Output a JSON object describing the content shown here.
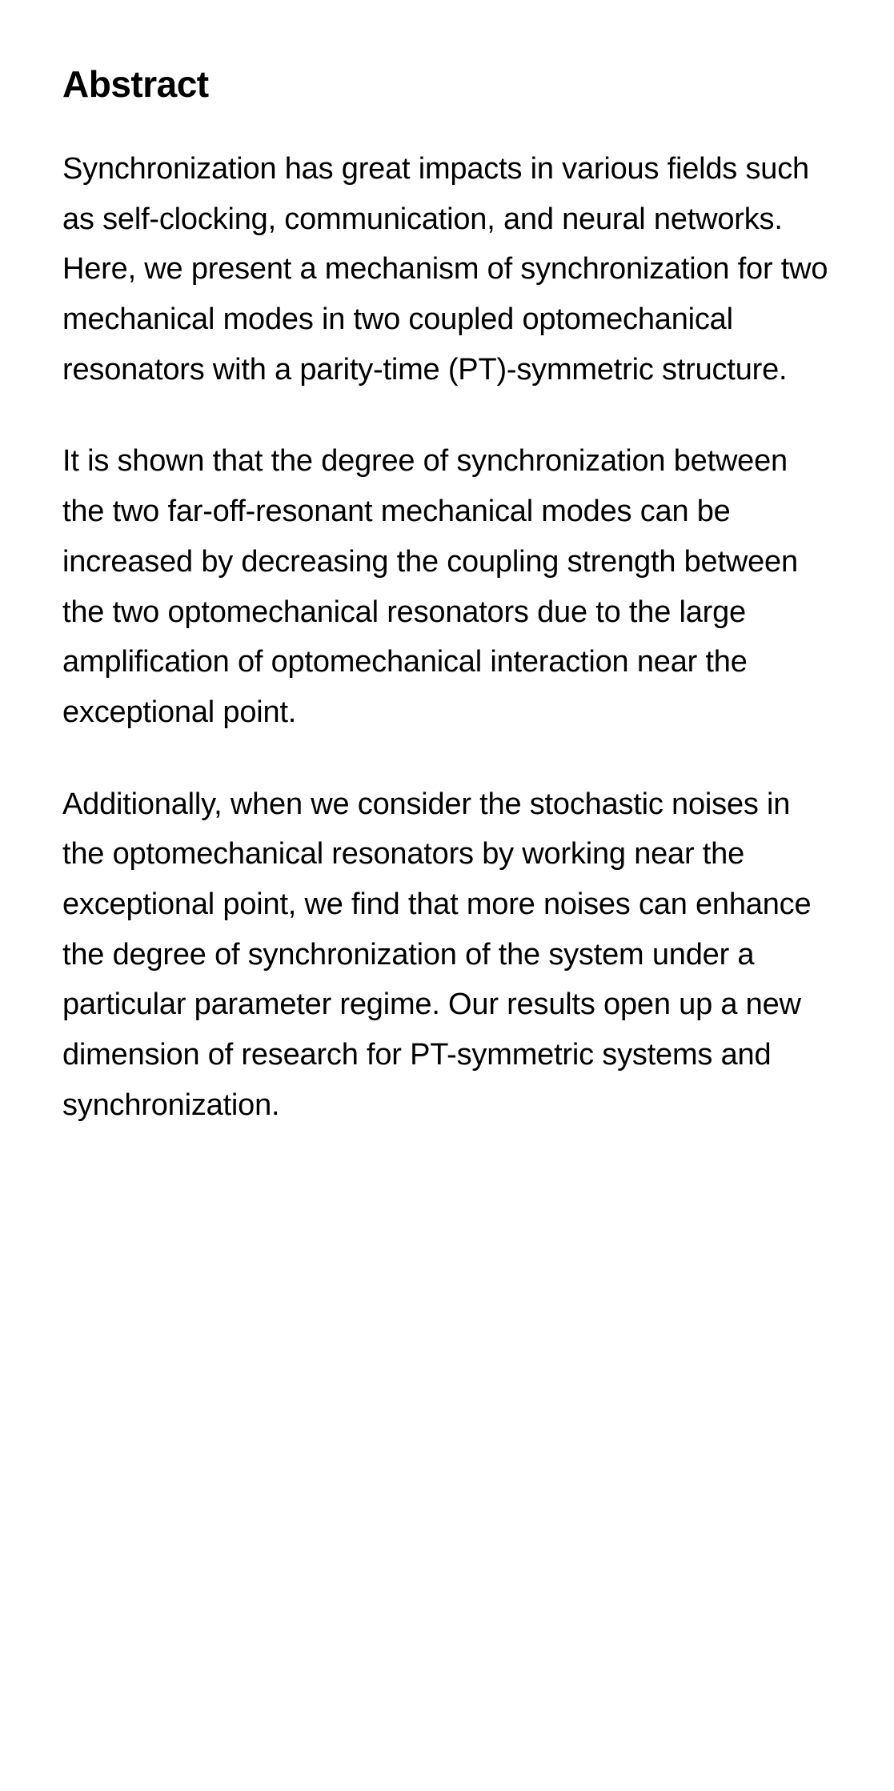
{
  "abstract": {
    "heading": "Abstract",
    "paragraphs": [
      "Synchronization has great impacts in various fields such as self-clocking, communication, and neural networks. Here, we present a mechanism of synchronization for two mechanical modes in two coupled optomechanical resonators with a parity-time (PT)-symmetric structure.",
      "It is shown that the degree of synchronization between the two far-off-resonant mechanical modes can be increased by decreasing the coupling strength between the two optomechanical resonators due to the large amplification of optomechanical interaction near the exceptional point.",
      "Additionally, when we consider the stochastic noises in the optomechanical resonators by working near the exceptional point, we find that more noises can enhance the degree of synchronization of the system under a particular parameter regime. Our results open up a new dimension of research for PT-symmetric systems and synchronization."
    ]
  },
  "styles": {
    "background_color": "#ffffff",
    "text_color": "#000000",
    "heading_fontsize": 46,
    "heading_fontweight": 700,
    "body_fontsize": 38,
    "body_lineheight": 1.65,
    "paragraph_spacing": 52
  }
}
